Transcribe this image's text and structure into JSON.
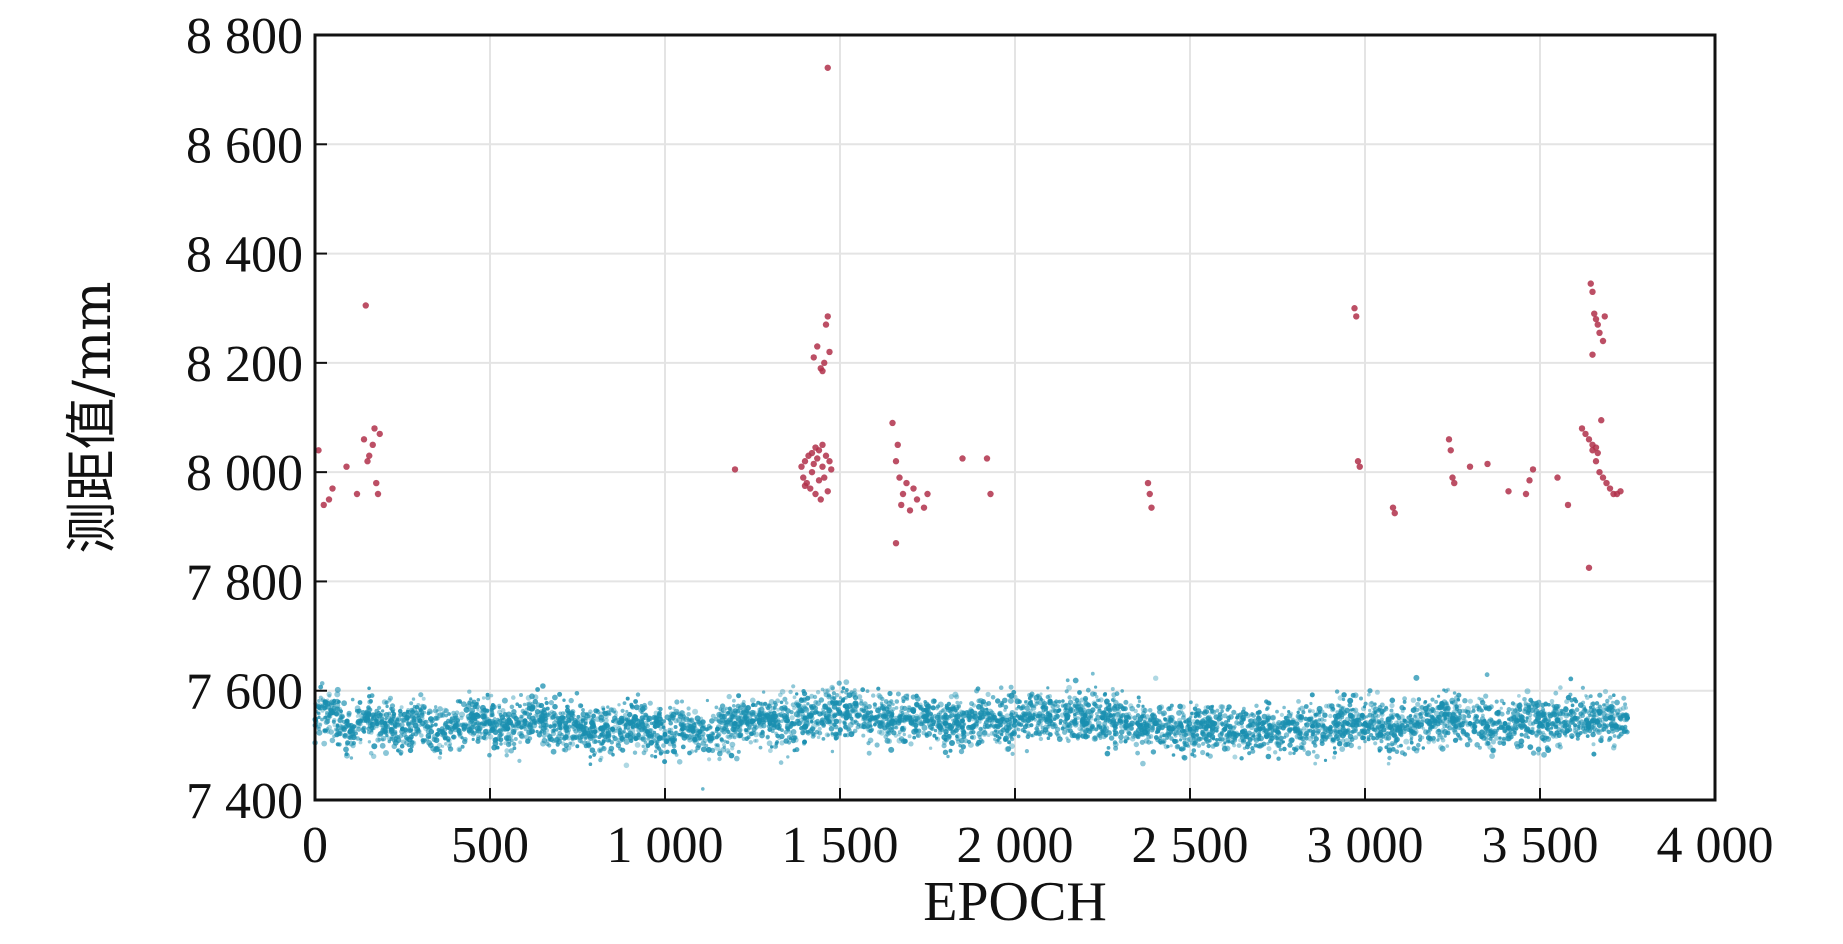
{
  "chart_data": {
    "type": "scatter",
    "title": "",
    "xlabel": "EPOCH",
    "ylabel": "测距值/mm",
    "xlim": [
      0,
      4000
    ],
    "ylim": [
      7400,
      8800
    ],
    "xticks": [
      0,
      500,
      1000,
      1500,
      2000,
      2500,
      3000,
      3500,
      4000
    ],
    "xtick_labels": [
      "0",
      "500",
      "1 000",
      "1 500",
      "2 000",
      "2 500",
      "3 000",
      "3 500",
      "4 000"
    ],
    "yticks": [
      7400,
      7600,
      7800,
      8000,
      8200,
      8400,
      8600,
      8800
    ],
    "ytick_labels": [
      "7 400",
      "7 600",
      "7 800",
      "8 000",
      "8 200",
      "8 400",
      "8 600",
      "8 800"
    ],
    "grid": true,
    "legend": "none",
    "colors": {
      "normal": "#1a8fb0",
      "outlier": "#b0304a",
      "grid": "#e4e4e4",
      "axis": "#111111"
    },
    "series": [
      {
        "color": "#1a8fb0",
        "x_range": [
          0,
          3750
        ],
        "y_center": 7540,
        "y_spread": 40,
        "points": [
          [
            50,
            7560
          ],
          [
            100,
            7525
          ],
          [
            150,
            7550
          ],
          [
            200,
            7540
          ],
          [
            250,
            7530
          ],
          [
            300,
            7545
          ],
          [
            350,
            7520
          ],
          [
            400,
            7535
          ],
          [
            450,
            7550
          ],
          [
            500,
            7540
          ],
          [
            550,
            7530
          ],
          [
            600,
            7545
          ],
          [
            650,
            7550
          ],
          [
            700,
            7540
          ],
          [
            750,
            7535
          ],
          [
            800,
            7525
          ],
          [
            850,
            7530
          ],
          [
            900,
            7540
          ],
          [
            950,
            7525
          ],
          [
            1000,
            7520
          ],
          [
            1050,
            7530
          ],
          [
            1100,
            7525
          ],
          [
            1150,
            7530
          ],
          [
            1200,
            7540
          ],
          [
            1250,
            7545
          ],
          [
            1300,
            7540
          ],
          [
            1350,
            7545
          ],
          [
            1400,
            7550
          ],
          [
            1500,
            7560
          ],
          [
            1550,
            7555
          ],
          [
            1600,
            7550
          ],
          [
            1650,
            7545
          ],
          [
            1700,
            7550
          ],
          [
            1750,
            7545
          ],
          [
            1800,
            7540
          ],
          [
            1850,
            7545
          ],
          [
            1900,
            7550
          ],
          [
            1950,
            7545
          ],
          [
            2000,
            7545
          ],
          [
            2050,
            7550
          ],
          [
            2100,
            7555
          ],
          [
            2150,
            7550
          ],
          [
            2200,
            7555
          ],
          [
            2250,
            7550
          ],
          [
            2300,
            7545
          ],
          [
            2350,
            7540
          ],
          [
            2400,
            7540
          ],
          [
            2450,
            7530
          ],
          [
            2500,
            7530
          ],
          [
            2550,
            7535
          ],
          [
            2600,
            7530
          ],
          [
            2650,
            7525
          ],
          [
            2700,
            7530
          ],
          [
            2750,
            7525
          ],
          [
            2800,
            7530
          ],
          [
            2850,
            7535
          ],
          [
            2900,
            7530
          ],
          [
            2950,
            7540
          ],
          [
            3000,
            7540
          ],
          [
            3050,
            7535
          ],
          [
            3100,
            7530
          ],
          [
            3150,
            7540
          ],
          [
            3200,
            7545
          ],
          [
            3250,
            7550
          ],
          [
            3300,
            7540
          ],
          [
            3350,
            7535
          ],
          [
            3400,
            7540
          ],
          [
            3450,
            7545
          ],
          [
            3500,
            7540
          ],
          [
            3550,
            7545
          ],
          [
            3600,
            7550
          ],
          [
            3650,
            7545
          ],
          [
            3700,
            7550
          ],
          [
            3750,
            7550
          ]
        ]
      },
      {
        "color": "#b0304a",
        "points": [
          [
            10,
            8040
          ],
          [
            25,
            7940
          ],
          [
            40,
            7950
          ],
          [
            50,
            7970
          ],
          [
            90,
            8010
          ],
          [
            120,
            7960
          ],
          [
            140,
            8060
          ],
          [
            150,
            8020
          ],
          [
            155,
            8030
          ],
          [
            165,
            8050
          ],
          [
            170,
            8080
          ],
          [
            175,
            7980
          ],
          [
            180,
            7960
          ],
          [
            185,
            8070
          ],
          [
            145,
            8305
          ],
          [
            1200,
            8005
          ],
          [
            1390,
            8010
          ],
          [
            1395,
            7990
          ],
          [
            1400,
            8020
          ],
          [
            1405,
            7980
          ],
          [
            1410,
            8030
          ],
          [
            1415,
            7970
          ],
          [
            1420,
            8000
          ],
          [
            1425,
            8015
          ],
          [
            1430,
            7960
          ],
          [
            1435,
            8025
          ],
          [
            1440,
            8040
          ],
          [
            1445,
            7950
          ],
          [
            1450,
            8010
          ],
          [
            1455,
            7990
          ],
          [
            1460,
            8030
          ],
          [
            1470,
            8020
          ],
          [
            1400,
            7975
          ],
          [
            1420,
            8035
          ],
          [
            1430,
            8045
          ],
          [
            1440,
            7985
          ],
          [
            1450,
            8050
          ],
          [
            1465,
            7965
          ],
          [
            1475,
            8005
          ],
          [
            1425,
            8210
          ],
          [
            1435,
            8230
          ],
          [
            1445,
            8190
          ],
          [
            1450,
            8185
          ],
          [
            1455,
            8200
          ],
          [
            1460,
            8270
          ],
          [
            1465,
            8285
          ],
          [
            1470,
            8220
          ],
          [
            1465,
            8740
          ],
          [
            1650,
            8090
          ],
          [
            1660,
            8020
          ],
          [
            1665,
            8050
          ],
          [
            1670,
            7990
          ],
          [
            1675,
            7940
          ],
          [
            1680,
            7960
          ],
          [
            1690,
            7980
          ],
          [
            1700,
            7930
          ],
          [
            1710,
            7970
          ],
          [
            1720,
            7950
          ],
          [
            1740,
            7935
          ],
          [
            1750,
            7960
          ],
          [
            1660,
            7870
          ],
          [
            1850,
            8025
          ],
          [
            1920,
            8025
          ],
          [
            1930,
            7960
          ],
          [
            2380,
            7980
          ],
          [
            2385,
            7960
          ],
          [
            2390,
            7935
          ],
          [
            2970,
            8300
          ],
          [
            2975,
            8285
          ],
          [
            2980,
            8020
          ],
          [
            2985,
            8010
          ],
          [
            3080,
            7935
          ],
          [
            3085,
            7925
          ],
          [
            3240,
            8060
          ],
          [
            3245,
            8040
          ],
          [
            3250,
            7990
          ],
          [
            3255,
            7980
          ],
          [
            3300,
            8010
          ],
          [
            3350,
            8015
          ],
          [
            3410,
            7965
          ],
          [
            3460,
            7960
          ],
          [
            3470,
            7985
          ],
          [
            3480,
            8005
          ],
          [
            3550,
            7990
          ],
          [
            3580,
            7940
          ],
          [
            3620,
            8080
          ],
          [
            3630,
            8070
          ],
          [
            3640,
            8060
          ],
          [
            3650,
            8040
          ],
          [
            3660,
            8020
          ],
          [
            3670,
            8000
          ],
          [
            3680,
            7990
          ],
          [
            3690,
            7980
          ],
          [
            3700,
            7970
          ],
          [
            3710,
            7960
          ],
          [
            3720,
            7960
          ],
          [
            3730,
            7965
          ],
          [
            3650,
            8050
          ],
          [
            3660,
            8045
          ],
          [
            3665,
            8035
          ],
          [
            3675,
            8095
          ],
          [
            3645,
            8345
          ],
          [
            3650,
            8330
          ],
          [
            3655,
            8290
          ],
          [
            3660,
            8280
          ],
          [
            3665,
            8270
          ],
          [
            3670,
            8255
          ],
          [
            3680,
            8240
          ],
          [
            3650,
            8215
          ],
          [
            3685,
            8285
          ],
          [
            3640,
            7825
          ]
        ]
      }
    ]
  }
}
